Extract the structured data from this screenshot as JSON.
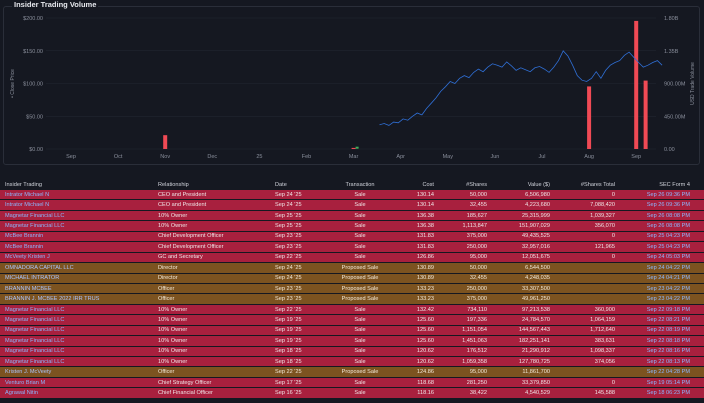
{
  "panel": {
    "title": "Insider Trading Volume"
  },
  "chart_data": {
    "type": "line",
    "title": "Insider Trading Volume",
    "ylabel": "Close Price",
    "y2label": "USD Trade Volume",
    "x_ticks": [
      "Sep",
      "Oct",
      "Nov",
      "Dec",
      "25",
      "Feb",
      "Mar",
      "Apr",
      "May",
      "Jun",
      "Jul",
      "Aug",
      "Sep"
    ],
    "y_ticks": [
      "$200.00",
      "$150.00",
      "$100.00",
      "$50.00",
      "$0.00"
    ],
    "y2_ticks": [
      "1.80B",
      "1.35B",
      "900.00M",
      "450.00M",
      "0.00"
    ],
    "ylim": [
      0,
      200
    ],
    "y2lim": [
      0,
      1800000000
    ],
    "price_series": {
      "name": "Close Price",
      "color": "#2f6fd6",
      "points": [
        [
          6.55,
          37
        ],
        [
          6.65,
          39
        ],
        [
          6.75,
          36
        ],
        [
          6.85,
          41
        ],
        [
          6.95,
          40
        ],
        [
          7.05,
          46
        ],
        [
          7.15,
          44
        ],
        [
          7.25,
          50
        ],
        [
          7.35,
          55
        ],
        [
          7.45,
          52
        ],
        [
          7.55,
          62
        ],
        [
          7.65,
          70
        ],
        [
          7.75,
          78
        ],
        [
          7.85,
          88
        ],
        [
          7.95,
          95
        ],
        [
          8.05,
          103
        ],
        [
          8.15,
          100
        ],
        [
          8.25,
          108
        ],
        [
          8.35,
          112
        ],
        [
          8.45,
          109
        ],
        [
          8.55,
          117
        ],
        [
          8.65,
          122
        ],
        [
          8.75,
          118
        ],
        [
          8.85,
          125
        ],
        [
          8.95,
          130
        ],
        [
          9.05,
          128
        ],
        [
          9.15,
          125
        ],
        [
          9.25,
          133
        ],
        [
          9.35,
          127
        ],
        [
          9.45,
          120
        ],
        [
          9.55,
          124
        ],
        [
          9.65,
          121
        ],
        [
          9.75,
          118
        ],
        [
          9.85,
          124
        ],
        [
          9.95,
          126
        ],
        [
          10.05,
          122
        ],
        [
          10.15,
          117
        ],
        [
          10.25,
          125
        ],
        [
          10.35,
          135
        ],
        [
          10.45,
          150
        ],
        [
          10.55,
          142
        ],
        [
          10.65,
          128
        ],
        [
          10.75,
          112
        ],
        [
          10.85,
          105
        ],
        [
          10.95,
          103
        ],
        [
          11.05,
          108
        ],
        [
          11.15,
          118
        ],
        [
          11.25,
          108
        ],
        [
          11.35,
          120
        ],
        [
          11.45,
          128
        ],
        [
          11.55,
          132
        ],
        [
          11.65,
          135
        ],
        [
          11.75,
          143
        ],
        [
          11.85,
          148
        ],
        [
          11.95,
          140
        ],
        [
          12.05,
          132
        ],
        [
          12.15,
          125
        ],
        [
          12.25,
          128
        ],
        [
          12.35,
          132
        ],
        [
          12.45,
          135
        ],
        [
          12.55,
          128
        ]
      ]
    },
    "volume_bars": {
      "name": "USD Trade Volume",
      "color": "#f04a55",
      "points": [
        [
          2.0,
          190000000
        ],
        [
          6.0,
          15000000
        ],
        [
          11.0,
          860000000
        ],
        [
          12.0,
          1760000000
        ],
        [
          12.2,
          940000000
        ]
      ]
    },
    "price_markers": [
      {
        "x": 6.0,
        "y": 2,
        "color": "#3fae5c"
      }
    ],
    "legend": "none"
  },
  "table": {
    "headers": [
      "Insider Trading",
      "Relationship",
      "Date",
      "Transaction",
      "Cost",
      "#Shares",
      "Value ($)",
      "#Shares Total",
      "SEC Form 4"
    ],
    "rows": [
      {
        "kind": "sale",
        "name": "Intrator Michael N",
        "rel": "CEO and President",
        "date": "Sep 24 '25",
        "tx": "Sale",
        "cost": "130.14",
        "shares": "50,000",
        "value": "6,506,980",
        "total": "0",
        "form": "Sep 26 09:36 PM"
      },
      {
        "kind": "sale",
        "name": "Intrator Michael N",
        "rel": "CEO and President",
        "date": "Sep 24 '25",
        "tx": "Sale",
        "cost": "130.14",
        "shares": "32,455",
        "value": "4,223,680",
        "total": "7,088,420",
        "form": "Sep 26 09:36 PM"
      },
      {
        "kind": "sale",
        "name": "Magnetar Financial LLC",
        "rel": "10% Owner",
        "date": "Sep 25 '25",
        "tx": "Sale",
        "cost": "136.38",
        "shares": "185,627",
        "value": "25,315,999",
        "total": "1,039,327",
        "form": "Sep 26 08:08 PM"
      },
      {
        "kind": "sale",
        "name": "Magnetar Financial LLC",
        "rel": "10% Owner",
        "date": "Sep 25 '25",
        "tx": "Sale",
        "cost": "136.38",
        "shares": "1,113,847",
        "value": "151,907,029",
        "total": "356,070",
        "form": "Sep 26 08:08 PM"
      },
      {
        "kind": "sale",
        "name": "McBee Brannin",
        "rel": "Chief Development Officer",
        "date": "Sep 23 '25",
        "tx": "Sale",
        "cost": "131.83",
        "shares": "375,000",
        "value": "49,435,525",
        "total": "0",
        "form": "Sep 25 04:23 PM"
      },
      {
        "kind": "sale",
        "name": "McBee Brannin",
        "rel": "Chief Development Officer",
        "date": "Sep 23 '25",
        "tx": "Sale",
        "cost": "131.83",
        "shares": "250,000",
        "value": "32,957,016",
        "total": "121,965",
        "form": "Sep 25 04:23 PM"
      },
      {
        "kind": "sale",
        "name": "McVeety Kristen J",
        "rel": "GC and Secretary",
        "date": "Sep 22 '25",
        "tx": "Sale",
        "cost": "126.86",
        "shares": "95,000",
        "value": "12,051,675",
        "total": "0",
        "form": "Sep 24 05:03 PM"
      },
      {
        "kind": "proposed",
        "name": "OMNADORA CAPITAL LLC",
        "rel": "Director",
        "date": "Sep 24 '25",
        "tx": "Proposed Sale",
        "cost": "130.89",
        "shares": "50,000",
        "value": "6,544,500",
        "total": "",
        "form": "Sep 24 04:22 PM"
      },
      {
        "kind": "proposed",
        "name": "MICHAEL INTRATOR",
        "rel": "Director",
        "date": "Sep 24 '25",
        "tx": "Proposed Sale",
        "cost": "130.89",
        "shares": "32,455",
        "value": "4,248,035",
        "total": "",
        "form": "Sep 24 04:21 PM"
      },
      {
        "kind": "proposed",
        "name": "BRANNIN MCBEE",
        "rel": "Officer",
        "date": "Sep 23 '25",
        "tx": "Proposed Sale",
        "cost": "133.23",
        "shares": "250,000",
        "value": "33,307,500",
        "total": "",
        "form": "Sep 23 04:22 PM"
      },
      {
        "kind": "proposed",
        "name": "BRANNIN J. MCBEE 2022 IRR TRUS",
        "rel": "Officer",
        "date": "Sep 23 '25",
        "tx": "Proposed Sale",
        "cost": "133.23",
        "shares": "375,000",
        "value": "49,961,250",
        "total": "",
        "form": "Sep 23 04:22 PM"
      },
      {
        "kind": "sale",
        "name": "Magnetar Financial LLC",
        "rel": "10% Owner",
        "date": "Sep 22 '25",
        "tx": "Sale",
        "cost": "132.42",
        "shares": "734,110",
        "value": "97,213,538",
        "total": "360,900",
        "form": "Sep 22 09:18 PM"
      },
      {
        "kind": "sale",
        "name": "Magnetar Financial LLC",
        "rel": "10% Owner",
        "date": "Sep 19 '25",
        "tx": "Sale",
        "cost": "125.60",
        "shares": "197,336",
        "value": "24,784,570",
        "total": "1,064,159",
        "form": "Sep 22 08:21 PM"
      },
      {
        "kind": "sale",
        "name": "Magnetar Financial LLC",
        "rel": "10% Owner",
        "date": "Sep 19 '25",
        "tx": "Sale",
        "cost": "125.60",
        "shares": "1,151,054",
        "value": "144,567,443",
        "total": "1,712,640",
        "form": "Sep 22 08:19 PM"
      },
      {
        "kind": "sale",
        "name": "Magnetar Financial LLC",
        "rel": "10% Owner",
        "date": "Sep 19 '25",
        "tx": "Sale",
        "cost": "125.60",
        "shares": "1,451,063",
        "value": "182,251,141",
        "total": "383,631",
        "form": "Sep 22 08:18 PM"
      },
      {
        "kind": "sale",
        "name": "Magnetar Financial LLC",
        "rel": "10% Owner",
        "date": "Sep 18 '25",
        "tx": "Sale",
        "cost": "120.62",
        "shares": "176,512",
        "value": "21,290,912",
        "total": "1,098,337",
        "form": "Sep 22 08:16 PM"
      },
      {
        "kind": "sale",
        "name": "Magnetar Financial LLC",
        "rel": "10% Owner",
        "date": "Sep 18 '25",
        "tx": "Sale",
        "cost": "120.62",
        "shares": "1,059,358",
        "value": "127,780,725",
        "total": "374,056",
        "form": "Sep 22 08:13 PM"
      },
      {
        "kind": "proposed",
        "name": "Kristen J. McVeety",
        "rel": "Officer",
        "date": "Sep 22 '25",
        "tx": "Proposed Sale",
        "cost": "124.86",
        "shares": "95,000",
        "value": "11,861,700",
        "total": "",
        "form": "Sep 22 04:28 PM"
      },
      {
        "kind": "sale",
        "name": "Venturo Brian M",
        "rel": "Chief Strategy Officer",
        "date": "Sep 17 '25",
        "tx": "Sale",
        "cost": "118.68",
        "shares": "281,250",
        "value": "33,379,850",
        "total": "0",
        "form": "Sep 19 05:14 PM"
      },
      {
        "kind": "sale",
        "name": "Agrawal Nitin",
        "rel": "Chief Financial Officer",
        "date": "Sep 16 '25",
        "tx": "Sale",
        "cost": "118.16",
        "shares": "38,422",
        "value": "4,540,529",
        "total": "145,588",
        "form": "Sep 18 06:23 PM"
      }
    ]
  }
}
